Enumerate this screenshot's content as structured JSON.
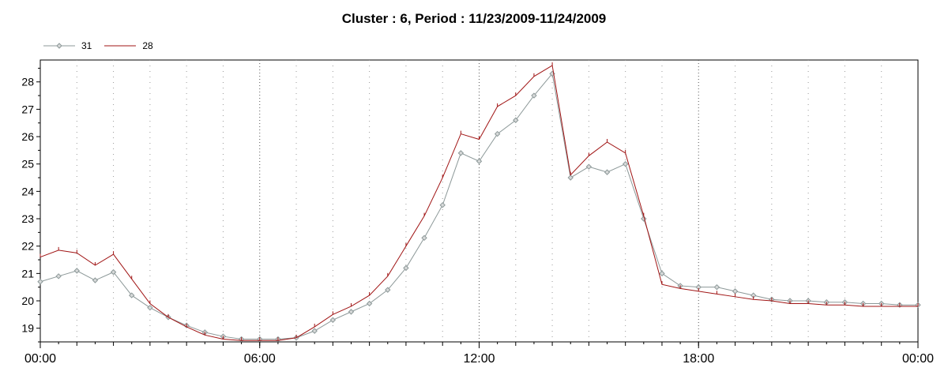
{
  "chart_data": {
    "type": "line",
    "title": "Cluster : 6, Period : 11/23/2009-11/24/2009",
    "xlabel": "",
    "ylabel": "",
    "x_ticks": [
      "00:00",
      "06:00",
      "12:00",
      "18:00",
      "00:00"
    ],
    "xlim_hours": [
      0,
      24
    ],
    "ylim": [
      18.5,
      28.8
    ],
    "y_ticks": [
      19,
      20,
      21,
      22,
      23,
      24,
      25,
      26,
      27,
      28
    ],
    "grid": "dotted vertical lines every 1 hour",
    "legend_position": "top-left",
    "x_hours": [
      0,
      0.5,
      1,
      1.5,
      2,
      2.5,
      3,
      3.5,
      4,
      4.5,
      5,
      5.5,
      6,
      6.5,
      7,
      7.5,
      8,
      8.5,
      9,
      9.5,
      10,
      10.5,
      11,
      11.5,
      12,
      12.5,
      13,
      13.5,
      14,
      14.5,
      15,
      15.5,
      16,
      16.5,
      17,
      17.5,
      18,
      18.5,
      19,
      19.5,
      20,
      20.5,
      21,
      21.5,
      22,
      22.5,
      23,
      23.5,
      24
    ],
    "series": [
      {
        "name": "31",
        "color": "#8c9898",
        "marker": "diamond",
        "values": [
          20.7,
          20.9,
          21.1,
          20.75,
          21.05,
          20.2,
          19.75,
          19.4,
          19.1,
          18.85,
          18.7,
          18.6,
          18.6,
          18.6,
          18.65,
          18.9,
          19.3,
          19.6,
          19.9,
          20.4,
          21.2,
          22.3,
          23.5,
          25.4,
          25.1,
          26.1,
          26.6,
          27.5,
          28.3,
          24.5,
          24.9,
          24.7,
          25.0,
          23.0,
          21.0,
          20.55,
          20.5,
          20.5,
          20.35,
          20.2,
          20.05,
          20.0,
          20.0,
          19.95,
          19.95,
          19.9,
          19.9,
          19.85,
          19.85
        ]
      },
      {
        "name": "28",
        "color": "#a01414",
        "marker": "tick",
        "values": [
          21.6,
          21.85,
          21.75,
          21.3,
          21.7,
          20.8,
          19.9,
          19.4,
          19.05,
          18.75,
          18.6,
          18.55,
          18.55,
          18.55,
          18.65,
          19.05,
          19.5,
          19.8,
          20.2,
          20.9,
          22.0,
          23.1,
          24.5,
          26.1,
          25.9,
          27.1,
          27.5,
          28.2,
          28.6,
          24.6,
          25.3,
          25.8,
          25.4,
          23.1,
          20.6,
          20.45,
          20.35,
          20.25,
          20.15,
          20.05,
          20.0,
          19.9,
          19.9,
          19.85,
          19.85,
          19.8,
          19.8,
          19.8,
          19.8
        ]
      }
    ]
  }
}
